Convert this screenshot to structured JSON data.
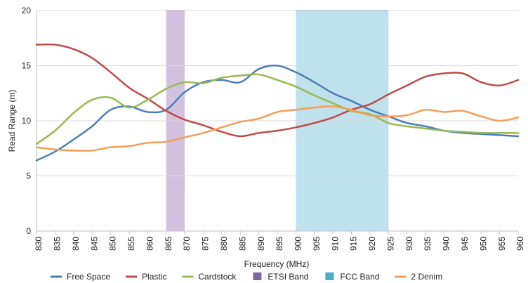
{
  "chart_data": {
    "type": "line",
    "title": "",
    "xlabel": "Frequency (MHz)",
    "ylabel": "Read Range (m)",
    "xlim": [
      830,
      960
    ],
    "ylim": [
      0,
      20
    ],
    "x_ticks": [
      830,
      835,
      840,
      845,
      850,
      855,
      860,
      865,
      870,
      875,
      880,
      885,
      890,
      895,
      900,
      905,
      910,
      915,
      920,
      925,
      930,
      935,
      940,
      945,
      950,
      955,
      960
    ],
    "y_ticks": [
      0,
      5,
      10,
      15,
      20
    ],
    "x_tick_labels": [
      "830",
      "835",
      "840",
      "845",
      "850",
      "855",
      "860",
      "865",
      "870",
      "875",
      "880",
      "885",
      "890",
      "895",
      "900",
      "905",
      "910",
      "915",
      "920",
      "925",
      "930",
      "935",
      "940",
      "945",
      "950",
      "955",
      "960"
    ],
    "y_tick_labels": [
      "0",
      "5",
      "10",
      "15",
      "20"
    ],
    "grid": "horizontal",
    "legend_position": "bottom",
    "bands": [
      {
        "name": "ETSI Band",
        "x_start": 865,
        "x_end": 870,
        "color": "#d3c2df",
        "legend_color": "#8064a2"
      },
      {
        "name": "FCC Band",
        "x_start": 900,
        "x_end": 925,
        "color": "#bfe1ec",
        "legend_color": "#4bacc6"
      }
    ],
    "series": [
      {
        "name": "Free Space",
        "color": "#4a7ebb",
        "x": [
          830,
          835,
          840,
          845,
          850,
          855,
          860,
          865,
          870,
          875,
          880,
          885,
          890,
          895,
          900,
          905,
          910,
          915,
          920,
          925,
          930,
          935,
          940,
          945,
          950,
          955,
          960
        ],
        "y": [
          6.4,
          7.2,
          8.3,
          9.5,
          11.0,
          11.3,
          10.8,
          11.0,
          12.6,
          13.5,
          13.7,
          13.5,
          14.7,
          15.0,
          14.4,
          13.5,
          12.5,
          11.8,
          11.0,
          10.4,
          9.8,
          9.5,
          9.1,
          8.9,
          8.8,
          8.7,
          8.6
        ]
      },
      {
        "name": "Plastic",
        "color": "#be4b48",
        "x": [
          830,
          835,
          840,
          845,
          850,
          855,
          860,
          865,
          870,
          875,
          880,
          885,
          890,
          895,
          900,
          905,
          910,
          915,
          920,
          925,
          930,
          935,
          940,
          945,
          950,
          955,
          960
        ],
        "y": [
          16.9,
          16.9,
          16.5,
          15.7,
          14.4,
          13.0,
          12.0,
          10.9,
          10.1,
          9.6,
          9.0,
          8.6,
          8.9,
          9.1,
          9.4,
          9.8,
          10.3,
          11.0,
          11.5,
          12.4,
          13.2,
          14.0,
          14.3,
          14.3,
          13.5,
          13.2,
          13.7
        ]
      },
      {
        "name": "Cardstock",
        "color": "#98b954",
        "x": [
          830,
          835,
          840,
          845,
          850,
          855,
          860,
          865,
          870,
          875,
          880,
          885,
          890,
          895,
          900,
          905,
          910,
          915,
          920,
          925,
          930,
          935,
          940,
          945,
          950,
          955,
          960
        ],
        "y": [
          7.9,
          9.1,
          10.7,
          11.9,
          12.1,
          11.2,
          11.9,
          12.9,
          13.5,
          13.4,
          13.9,
          14.1,
          14.2,
          13.7,
          13.1,
          12.3,
          11.6,
          10.9,
          10.6,
          9.8,
          9.5,
          9.3,
          9.1,
          9.0,
          8.9,
          8.9,
          8.9
        ]
      },
      {
        "name": "2 Denim",
        "color": "#f59d56",
        "x": [
          830,
          835,
          840,
          845,
          850,
          855,
          860,
          865,
          870,
          875,
          880,
          885,
          890,
          895,
          900,
          905,
          910,
          915,
          920,
          925,
          930,
          935,
          940,
          945,
          950,
          955,
          960
        ],
        "y": [
          7.6,
          7.4,
          7.3,
          7.3,
          7.6,
          7.7,
          8.0,
          8.1,
          8.5,
          8.9,
          9.4,
          9.9,
          10.2,
          10.8,
          11.0,
          11.2,
          11.3,
          11.0,
          10.5,
          10.4,
          10.5,
          11.0,
          10.8,
          10.9,
          10.4,
          10.0,
          10.3
        ]
      }
    ],
    "legend": [
      {
        "name": "Free Space",
        "color": "#4a7ebb",
        "kind": "line"
      },
      {
        "name": "Plastic",
        "color": "#be4b48",
        "kind": "line"
      },
      {
        "name": "Cardstock",
        "color": "#98b954",
        "kind": "line"
      },
      {
        "name": "ETSI Band",
        "color": "#8064a2",
        "kind": "box"
      },
      {
        "name": "FCC Band",
        "color": "#4bacc6",
        "kind": "box"
      },
      {
        "name": "2 Denim",
        "color": "#f59d56",
        "kind": "line"
      }
    ],
    "gridline_color": "#d9d9d9",
    "axis_color": "#bfbfbf"
  }
}
